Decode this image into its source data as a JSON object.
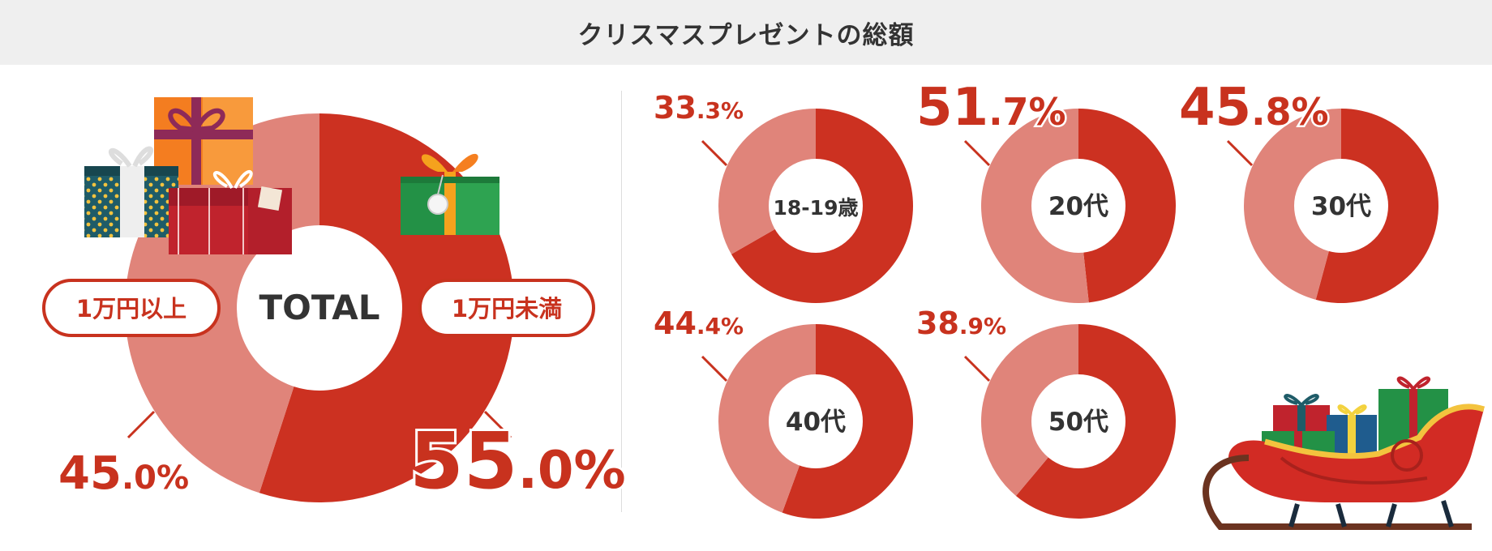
{
  "header": {
    "title": "クリスマスプレゼントの総額"
  },
  "colors": {
    "major": "#cc3121",
    "minor": "#e0847a",
    "accent": "#c8321e",
    "text": "#333333"
  },
  "chart_data": [
    {
      "type": "pie",
      "name": "TOTAL",
      "center_label": "TOTAL",
      "slices": [
        {
          "label": "1万円未満",
          "value": 55.0,
          "int": "55",
          "dec": ".0%"
        },
        {
          "label": "1万円以上",
          "value": 45.0,
          "int": "45",
          "dec": ".0%"
        }
      ]
    },
    {
      "type": "pie",
      "small_multiples": true,
      "groups": [
        {
          "center_label": "18-19歳",
          "minor_value": 33.3,
          "int": "33",
          "dec": ".3%"
        },
        {
          "center_label": "20代",
          "minor_value": 51.7,
          "int": "51",
          "dec": ".7%"
        },
        {
          "center_label": "30代",
          "minor_value": 45.8,
          "int": "45",
          "dec": ".8%"
        },
        {
          "center_label": "40代",
          "minor_value": 44.4,
          "int": "44",
          "dec": ".4%"
        },
        {
          "center_label": "50代",
          "minor_value": 38.9,
          "int": "38",
          "dec": ".9%"
        }
      ]
    }
  ]
}
